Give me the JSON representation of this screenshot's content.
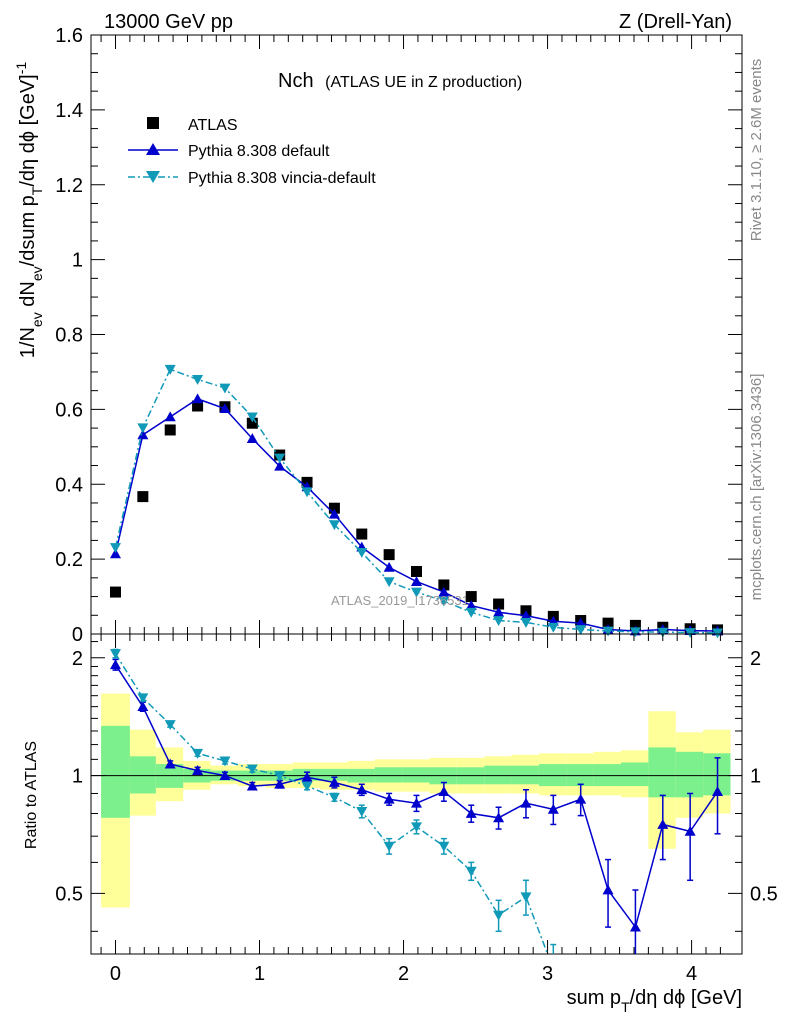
{
  "chart_data": [
    {
      "type": "scatter",
      "name": "main-panel",
      "header_left": "13000 GeV pp",
      "header_right": "Z (Drell-Yan)",
      "title": "Nch",
      "subtitle": "(ATLAS UE in Z production)",
      "ylabel": "1/N_ev dN_ev/dsum p_T/dη dϕ [GeV]^-1",
      "xlim": [
        -0.17,
        4.35
      ],
      "ylim": [
        0,
        1.6
      ],
      "yticks": [
        "0",
        "0.2",
        "0.4",
        "0.6",
        "0.8",
        "1",
        "1.2",
        "1.4",
        "1.6"
      ],
      "watermark": "ATLAS_2019_I1736531",
      "legend_position": "top-left",
      "series": [
        {
          "name": "ATLAS",
          "marker": "square",
          "color": "#000000",
          "x": [
            0.0,
            0.19,
            0.38,
            0.57,
            0.76,
            0.95,
            1.14,
            1.33,
            1.52,
            1.71,
            1.9,
            2.09,
            2.28,
            2.47,
            2.66,
            2.85,
            3.04,
            3.23,
            3.42,
            3.61,
            3.8,
            3.99,
            4.18
          ],
          "y": [
            0.112,
            0.367,
            0.545,
            0.609,
            0.607,
            0.563,
            0.478,
            0.405,
            0.336,
            0.267,
            0.212,
            0.167,
            0.131,
            0.1,
            0.08,
            0.062,
            0.047,
            0.036,
            0.029,
            0.023,
            0.018,
            0.014,
            0.011
          ]
        },
        {
          "name": "Pythia 8.308 default",
          "marker": "triangle-up",
          "color": "#0000cc",
          "line": "solid",
          "x": [
            0.0,
            0.19,
            0.38,
            0.57,
            0.76,
            0.95,
            1.14,
            1.33,
            1.52,
            1.71,
            1.9,
            2.09,
            2.28,
            2.47,
            2.66,
            2.85,
            3.04,
            3.23,
            3.42,
            3.61,
            3.8,
            3.99,
            4.18
          ],
          "y": [
            0.214,
            0.532,
            0.58,
            0.628,
            0.602,
            0.522,
            0.448,
            0.393,
            0.32,
            0.232,
            0.178,
            0.14,
            0.112,
            0.076,
            0.058,
            0.049,
            0.034,
            0.029,
            0.012,
            0.008,
            0.012,
            0.009,
            0.008
          ]
        },
        {
          "name": "Pythia 8.308 vincia-default",
          "marker": "triangle-down",
          "color": "#119ab8",
          "line": "dashdot",
          "x": [
            0.0,
            0.19,
            0.38,
            0.57,
            0.76,
            0.95,
            1.14,
            1.33,
            1.52,
            1.71,
            1.9,
            2.09,
            2.28,
            2.47,
            2.66,
            2.85,
            3.04,
            3.23,
            3.42,
            3.61,
            3.8,
            3.99,
            4.18
          ],
          "y": [
            0.231,
            0.551,
            0.707,
            0.68,
            0.657,
            0.58,
            0.47,
            0.38,
            0.292,
            0.218,
            0.14,
            0.112,
            0.088,
            0.058,
            0.036,
            0.031,
            0.018,
            0.012,
            0.008,
            0.006,
            0.005,
            0.004,
            0.003
          ]
        }
      ]
    },
    {
      "type": "scatter",
      "name": "ratio-panel",
      "ylabel": "Ratio to ATLAS",
      "xlabel": "sum p_T/dη dϕ [GeV]",
      "xlim": [
        -0.17,
        4.35
      ],
      "ylim": [
        0.35,
        2.3
      ],
      "yticks": [
        "0.5",
        "1",
        "2"
      ],
      "xticks": [
        "0",
        "1",
        "2",
        "3",
        "4"
      ],
      "reference_line": 1,
      "bands": {
        "edges": [
          -0.1,
          0.1,
          0.28,
          0.47,
          0.66,
          0.85,
          1.04,
          1.23,
          1.42,
          1.61,
          1.8,
          1.99,
          2.18,
          2.37,
          2.56,
          2.75,
          2.94,
          3.13,
          3.32,
          3.51,
          3.7,
          3.89,
          4.08,
          4.27
        ],
        "inner_lo": [
          0.78,
          0.9,
          0.93,
          0.96,
          0.97,
          0.97,
          0.97,
          0.97,
          0.97,
          0.96,
          0.96,
          0.96,
          0.95,
          0.95,
          0.95,
          0.95,
          0.94,
          0.94,
          0.94,
          0.94,
          0.88,
          0.88,
          0.89
        ],
        "inner_hi": [
          1.34,
          1.12,
          1.07,
          1.04,
          1.03,
          1.03,
          1.03,
          1.04,
          1.04,
          1.04,
          1.05,
          1.05,
          1.05,
          1.05,
          1.06,
          1.06,
          1.07,
          1.07,
          1.07,
          1.08,
          1.18,
          1.15,
          1.14
        ],
        "outer_lo": [
          0.46,
          0.79,
          0.86,
          0.92,
          0.95,
          0.94,
          0.93,
          0.93,
          0.92,
          0.92,
          0.91,
          0.91,
          0.9,
          0.9,
          0.9,
          0.9,
          0.89,
          0.89,
          0.89,
          0.88,
          0.65,
          0.78,
          0.8
        ],
        "outer_hi": [
          1.62,
          1.31,
          1.18,
          1.09,
          1.06,
          1.07,
          1.07,
          1.08,
          1.08,
          1.09,
          1.1,
          1.1,
          1.11,
          1.11,
          1.12,
          1.13,
          1.14,
          1.14,
          1.15,
          1.16,
          1.46,
          1.29,
          1.31
        ],
        "inner_color": "#7cf08c",
        "outer_color": "#ffff99"
      },
      "series": [
        {
          "name": "Pythia 8.308 default",
          "marker": "triangle-up",
          "color": "#0000cc",
          "line": "solid",
          "x": [
            0.0,
            0.19,
            0.38,
            0.57,
            0.76,
            0.95,
            1.14,
            1.33,
            1.52,
            1.71,
            1.9,
            2.09,
            2.28,
            2.47,
            2.66,
            2.85,
            3.04,
            3.23,
            3.42,
            3.61,
            3.8,
            3.99,
            4.18
          ],
          "y": [
            1.92,
            1.5,
            1.07,
            1.03,
            1.0,
            0.94,
            0.95,
            0.99,
            0.96,
            0.92,
            0.87,
            0.85,
            0.91,
            0.8,
            0.78,
            0.85,
            0.82,
            0.87,
            0.51,
            0.41,
            0.75,
            0.72,
            0.91
          ],
          "err": [
            0.06,
            0.04,
            0.02,
            0.02,
            0.02,
            0.02,
            0.02,
            0.03,
            0.03,
            0.03,
            0.03,
            0.04,
            0.05,
            0.04,
            0.05,
            0.07,
            0.07,
            0.08,
            0.1,
            0.1,
            0.14,
            0.18,
            0.2
          ]
        },
        {
          "name": "Pythia 8.308 vincia-default",
          "marker": "triangle-down",
          "color": "#119ab8",
          "line": "dashdot",
          "x": [
            0.0,
            0.19,
            0.38,
            0.57,
            0.76,
            0.95,
            1.14,
            1.33,
            1.52,
            1.71,
            1.9,
            2.09,
            2.28,
            2.47,
            2.66,
            2.85,
            3.04
          ],
          "y": [
            2.05,
            1.58,
            1.35,
            1.14,
            1.09,
            1.04,
            1.0,
            0.94,
            0.88,
            0.81,
            0.66,
            0.74,
            0.66,
            0.57,
            0.44,
            0.49,
            0.32
          ],
          "err": [
            0.05,
            0.03,
            0.02,
            0.02,
            0.02,
            0.02,
            0.02,
            0.02,
            0.02,
            0.03,
            0.03,
            0.03,
            0.03,
            0.03,
            0.04,
            0.05,
            0.05
          ]
        }
      ]
    }
  ],
  "side_notes": {
    "rivet": "Rivet 3.1.10, ≥ 2.6M events",
    "mcplots": "mcplots.cern.ch [arXiv:1306.3436]"
  }
}
